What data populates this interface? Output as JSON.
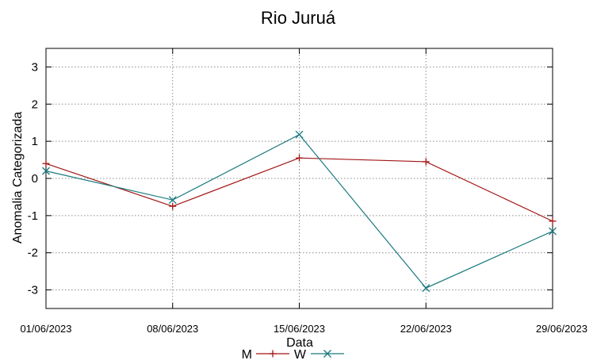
{
  "chart_data": {
    "type": "line",
    "title": "Rio Juruá",
    "xlabel": "Data",
    "ylabel": "Anomalia Categorizada",
    "categories": [
      "01/06/2023",
      "08/06/2023",
      "15/06/2023",
      "22/06/2023",
      "29/06/2023"
    ],
    "yticks": [
      -3,
      -2,
      -1,
      0,
      1,
      2,
      3
    ],
    "ylim": [
      -3.5,
      3.5
    ],
    "grid": true,
    "legend": "bottom",
    "series": [
      {
        "name": "M",
        "color": "#a31515",
        "marker": "+",
        "values": [
          0.4,
          -0.75,
          0.55,
          0.45,
          -1.15
        ]
      },
      {
        "name": "W",
        "color": "#1a7a7f",
        "marker": "x",
        "values": [
          0.2,
          -0.58,
          1.18,
          -2.95,
          -1.42
        ]
      }
    ]
  }
}
